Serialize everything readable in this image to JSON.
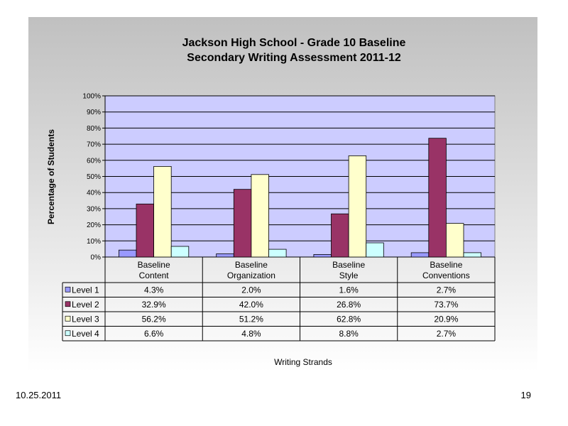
{
  "footer": {
    "date": "10.25.2011",
    "page": "19"
  },
  "colors": {
    "plot_bg": "#ccccff",
    "level1": "#9999ff",
    "level2": "#993366",
    "level3": "#ffffcc",
    "level4": "#ccffff"
  },
  "chart_data": {
    "type": "bar",
    "title": [
      "Jackson High School - Grade 10 Baseline",
      "Secondary Writing Assessment   2011-12"
    ],
    "xlabel": "Writing Strands",
    "ylabel": "Percentage of Students",
    "ylim": [
      0,
      100
    ],
    "yticks": [
      "0%",
      "10%",
      "20%",
      "30%",
      "40%",
      "50%",
      "60%",
      "70%",
      "80%",
      "90%",
      "100%"
    ],
    "grid": true,
    "categories": [
      [
        "Baseline",
        "Content"
      ],
      [
        "Baseline",
        "Organization"
      ],
      [
        "Baseline",
        "Style"
      ],
      [
        "Baseline",
        "Conventions"
      ]
    ],
    "series": [
      {
        "name": "Level 1",
        "values": [
          4.3,
          2.0,
          1.6,
          2.7
        ],
        "labels": [
          "4.3%",
          "2.0%",
          "1.6%",
          "2.7%"
        ]
      },
      {
        "name": "Level 2",
        "values": [
          32.9,
          42.0,
          26.8,
          73.7
        ],
        "labels": [
          "32.9%",
          "42.0%",
          "26.8%",
          "73.7%"
        ]
      },
      {
        "name": "Level 3",
        "values": [
          56.2,
          51.2,
          62.8,
          20.9
        ],
        "labels": [
          "56.2%",
          "51.2%",
          "62.8%",
          "20.9%"
        ]
      },
      {
        "name": "Level 4",
        "values": [
          6.6,
          4.8,
          8.8,
          2.7
        ],
        "labels": [
          "6.6%",
          "4.8%",
          "8.8%",
          "2.7%"
        ]
      }
    ]
  }
}
